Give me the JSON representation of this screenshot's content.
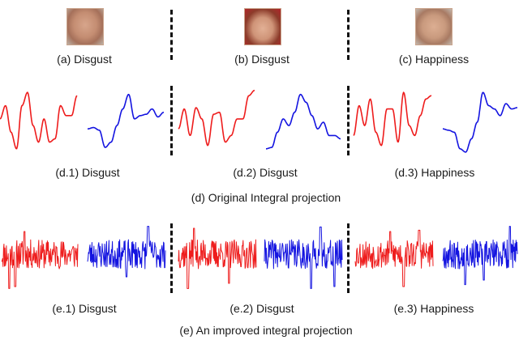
{
  "top_captions": [
    "(a) Disgust",
    "(b) Disgust",
    "(c) Happiness"
  ],
  "d_captions": [
    "(d.1) Disgust",
    "(d.2) Disgust",
    "(d.3) Happiness"
  ],
  "d_title": "(d) Original Integral projection",
  "e_captions": [
    "(e.1) Disgust",
    "(e.2) Disgust",
    "(e.3) Happiness"
  ],
  "e_title": "(e) An improved integral projection",
  "colors": {
    "red": "#ee1c1c",
    "blue": "#1414e0",
    "divider": "#111111"
  }
}
